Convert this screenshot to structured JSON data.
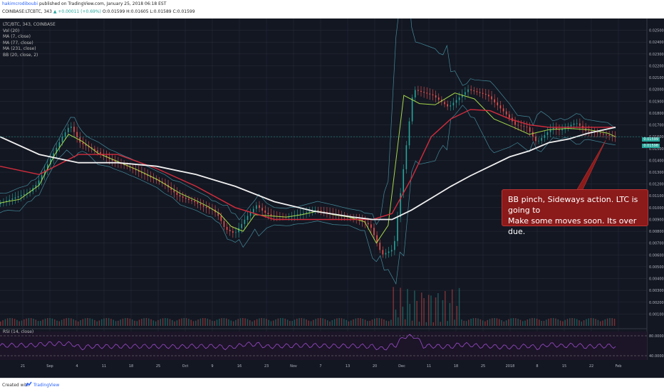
{
  "header": {
    "author": "hakimcrodiboubi",
    "published": "published on TradingView.com, January 25, 2018 06:18 EST",
    "symbol": "COINBASE:LTCBTC, 343",
    "ohlc": "O:0.01599 H:0.01605 L:0.01589 C:0.01599",
    "change": "▲ +0.00011 (+0.69%)"
  },
  "legend": [
    "LTC/BTC, 343, COINBASE",
    "Vol (20)",
    "MA (7, close)",
    "MA (77, close)",
    "MA (231, close)",
    "BB (20, close, 2)"
  ],
  "rsi_label": "RSI (14, close)",
  "annotation": {
    "line1": "BB pinch, Sideways action. LTC is going to",
    "line2": "Make some moves soon. Its over due."
  },
  "price_tags": {
    "last": "0.01599",
    "ma": "0.01598"
  },
  "footer": {
    "created": "Created with",
    "brand": "TradingView"
  },
  "colors": {
    "bg": "#131722",
    "grid": "#2a2e39",
    "up": "#26a69a",
    "down": "#ef5350",
    "ma_short": "#a5d64a",
    "ma_mid": "#d42c3c",
    "ma_long": "#f0f0f0",
    "bb": "#4fa8b8",
    "rsi": "#7b2d9e"
  },
  "chart_data": {
    "type": "line",
    "title": "LTC/BTC, 343, COINBASE",
    "xlabel": "",
    "ylabel": "",
    "ylim": [
      0.0,
      0.026
    ],
    "x_ticks": [
      "21",
      "Sep",
      "4",
      "11",
      "18",
      "25",
      "Oct",
      "9",
      "16",
      "23",
      "Nov",
      "7",
      "13",
      "20",
      "Dec",
      "11",
      "18",
      "25",
      "2018",
      "8",
      "15",
      "22",
      "Feb"
    ],
    "y_ticks": [
      "0.02500",
      "0.02400",
      "0.02300",
      "0.02200",
      "0.02100",
      "0.02000",
      "0.01900",
      "0.01800",
      "0.01700",
      "0.01600",
      "0.01500",
      "0.01400",
      "0.01300",
      "0.01200",
      "0.01100",
      "0.01000",
      "0.00900",
      "0.00800",
      "0.00700",
      "0.00600",
      "0.00500",
      "0.00400",
      "0.00300",
      "0.00200",
      "0.00100"
    ],
    "series": [
      {
        "name": "LTC/BTC",
        "x": [
          0,
          8,
          16,
          20,
          25,
          33,
          37,
          42,
          50,
          58,
          66,
          75,
          85,
          92,
          100,
          106,
          110,
          113,
          116,
          121,
          124,
          127,
          132,
          136,
          140,
          148,
          155,
          162,
          170,
          178,
          184,
          190,
          196,
          202,
          212,
          222,
          230,
          240,
          250,
          260,
          264,
          270,
          275,
          280,
          283,
          286,
          290,
          295,
          300,
          306,
          314
        ],
        "y": [
          0.0103,
          0.0108,
          0.0113,
          0.012,
          0.0135,
          0.016,
          0.017,
          0.0155,
          0.0148,
          0.014,
          0.0135,
          0.0128,
          0.012,
          0.011,
          0.0105,
          0.01,
          0.0098,
          0.0092,
          0.0082,
          0.0078,
          0.0085,
          0.0092,
          0.0102,
          0.0096,
          0.0093,
          0.0092,
          0.0095,
          0.0098,
          0.0095,
          0.0092,
          0.009,
          0.0085,
          0.006,
          0.0065,
          0.02,
          0.0195,
          0.0185,
          0.02,
          0.0195,
          0.0178,
          0.017,
          0.0168,
          0.0155,
          0.0163,
          0.0168,
          0.0165,
          0.0168,
          0.0172,
          0.0165,
          0.0163,
          0.016
        ]
      },
      {
        "name": "MA (7, close)",
        "x": [
          0,
          10,
          20,
          28,
          35,
          42,
          50,
          60,
          70,
          80,
          92,
          100,
          106,
          112,
          118,
          124,
          130,
          138,
          146,
          154,
          162,
          170,
          178,
          186,
          192,
          198,
          206,
          214,
          222,
          232,
          242,
          252,
          262,
          270,
          280,
          290,
          300,
          310,
          314
        ],
        "y": [
          0.0104,
          0.0107,
          0.0119,
          0.0145,
          0.0162,
          0.0156,
          0.0146,
          0.0139,
          0.0132,
          0.0124,
          0.0112,
          0.0106,
          0.0101,
          0.0095,
          0.0084,
          0.008,
          0.0094,
          0.0093,
          0.0092,
          0.0094,
          0.0097,
          0.0094,
          0.0092,
          0.0088,
          0.007,
          0.0085,
          0.0195,
          0.0188,
          0.0187,
          0.0197,
          0.0192,
          0.0175,
          0.0168,
          0.0162,
          0.0166,
          0.0167,
          0.0166,
          0.0163,
          0.016
        ]
      },
      {
        "name": "MA (77, close)",
        "x": [
          0,
          20,
          40,
          60,
          80,
          100,
          120,
          140,
          160,
          180,
          190,
          200,
          210,
          220,
          230,
          240,
          250,
          260,
          270,
          280,
          290,
          300,
          314
        ],
        "y": [
          0.0135,
          0.0128,
          0.0145,
          0.0145,
          0.0133,
          0.0118,
          0.01,
          0.009,
          0.009,
          0.009,
          0.009,
          0.0095,
          0.0125,
          0.016,
          0.0175,
          0.0183,
          0.0182,
          0.0175,
          0.017,
          0.0168,
          0.0168,
          0.0168,
          0.0168
        ]
      },
      {
        "name": "MA (231, close)",
        "x": [
          0,
          20,
          40,
          60,
          80,
          100,
          120,
          140,
          160,
          180,
          190,
          200,
          210,
          220,
          230,
          240,
          250,
          260,
          270,
          280,
          290,
          300,
          314
        ],
        "y": [
          0.016,
          0.0145,
          0.0138,
          0.0138,
          0.0135,
          0.0128,
          0.0118,
          0.0105,
          0.0097,
          0.0092,
          0.009,
          0.009,
          0.0098,
          0.0108,
          0.0118,
          0.0127,
          0.0135,
          0.0143,
          0.0148,
          0.0155,
          0.0158,
          0.0163,
          0.0168
        ]
      }
    ]
  }
}
